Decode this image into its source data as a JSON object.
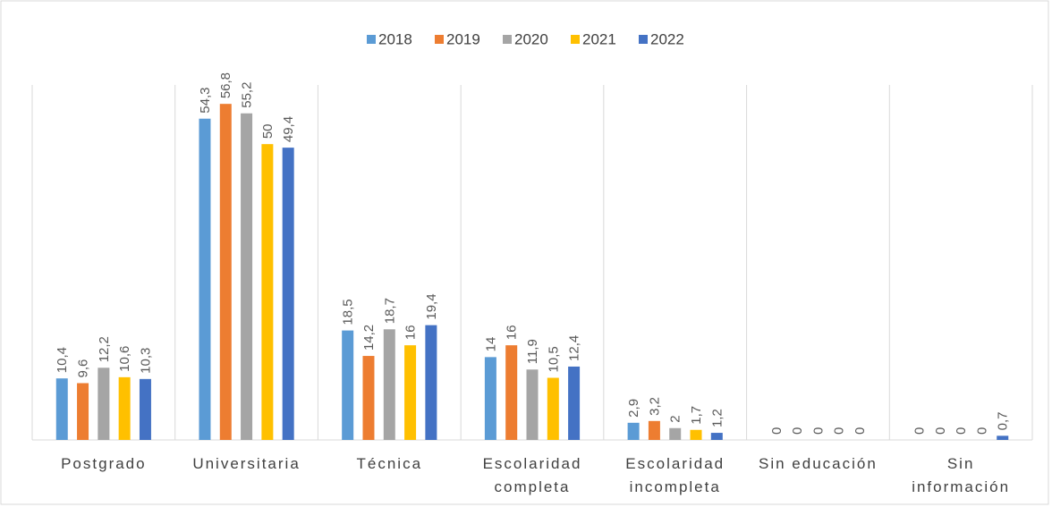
{
  "chart_data": {
    "type": "bar",
    "categories": [
      "Postgrado",
      "Universitaria",
      "Técnica",
      "Escolaridad\ncompleta",
      "Escolaridad\nincompleta",
      "Sin educación",
      "Sin\ninformación"
    ],
    "series": [
      {
        "name": "2018",
        "color": "#5b9bd5",
        "values": [
          10.4,
          54.3,
          18.5,
          14,
          2.9,
          0,
          0
        ],
        "value_labels": [
          "10,4",
          "54,3",
          "18,5",
          "14",
          "2,9",
          "0",
          "0"
        ]
      },
      {
        "name": "2019",
        "color": "#ed7d31",
        "values": [
          9.6,
          56.8,
          14.2,
          16,
          3.2,
          0,
          0
        ],
        "value_labels": [
          "9,6",
          "56,8",
          "14,2",
          "16",
          "3,2",
          "0",
          "0"
        ]
      },
      {
        "name": "2020",
        "color": "#a5a5a5",
        "values": [
          12.2,
          55.2,
          18.7,
          11.9,
          2,
          0,
          0
        ],
        "value_labels": [
          "12,2",
          "55,2",
          "18,7",
          "11,9",
          "2",
          "0",
          "0"
        ]
      },
      {
        "name": "2021",
        "color": "#ffc000",
        "values": [
          10.6,
          50,
          16,
          10.5,
          1.7,
          0,
          0
        ],
        "value_labels": [
          "10,6",
          "50",
          "16",
          "10,5",
          "1,7",
          "0",
          "0"
        ]
      },
      {
        "name": "2022",
        "color": "#4472c4",
        "values": [
          10.3,
          49.4,
          19.4,
          12.4,
          1.2,
          0,
          0.7
        ],
        "value_labels": [
          "10,3",
          "49,4",
          "19,4",
          "12,4",
          "1,2",
          "0",
          "0,7"
        ]
      }
    ],
    "ylim": [
      0,
      60
    ],
    "legend": "top"
  }
}
